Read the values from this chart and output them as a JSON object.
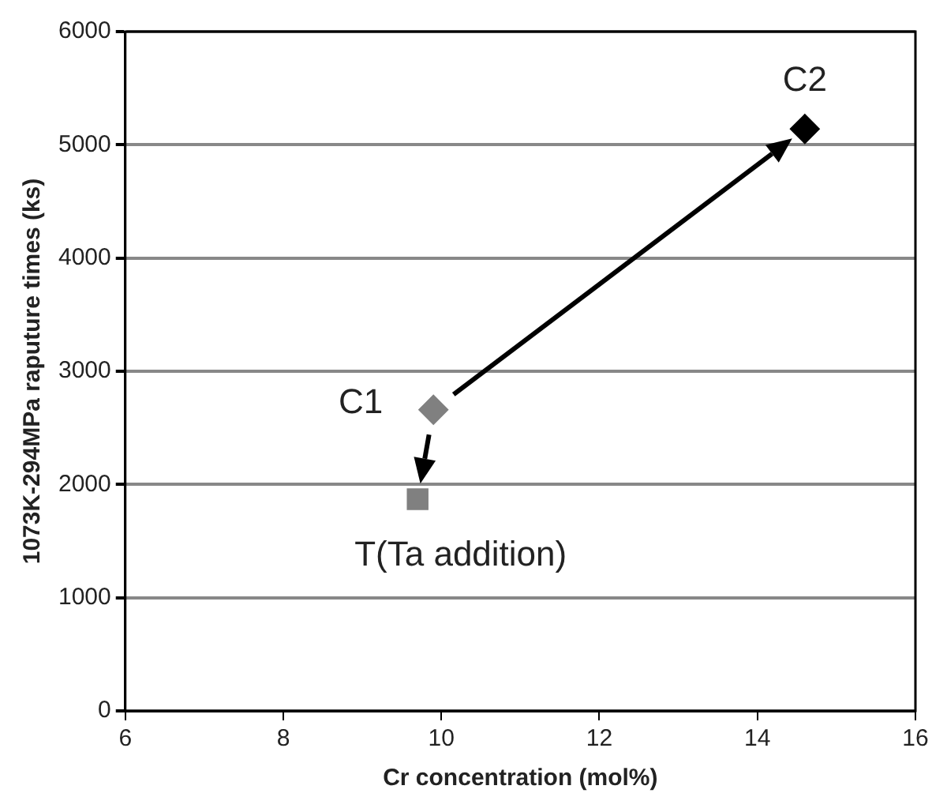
{
  "chart_data": {
    "type": "scatter",
    "xlabel": "Cr concentration (mol%)",
    "ylabel": "1073K-294MPa raputure times (ks)",
    "series": [
      {
        "name": "C1",
        "color": "#808080",
        "marker": "diamond",
        "x": [
          9.9
        ],
        "values": [
          2660
        ]
      },
      {
        "name": "C2",
        "color": "#000000",
        "marker": "diamond",
        "x": [
          14.6
        ],
        "values": [
          5140
        ]
      },
      {
        "name": "T(Ta addition)",
        "color": "#808080",
        "marker": "square",
        "x": [
          9.7
        ],
        "values": [
          1870
        ]
      }
    ],
    "xlim": [
      6,
      16
    ],
    "xticks": [
      6,
      8,
      10,
      12,
      14,
      16
    ],
    "ylim": [
      0,
      6000
    ],
    "yticks": [
      0,
      1000,
      2000,
      3000,
      4000,
      5000,
      6000
    ],
    "grid": "y",
    "legend": false
  }
}
